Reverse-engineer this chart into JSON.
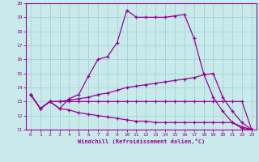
{
  "xlabel": "Windchill (Refroidissement éolien,°C)",
  "xlim": [
    -0.5,
    23.5
  ],
  "ylim": [
    11,
    20
  ],
  "yticks": [
    11,
    12,
    13,
    14,
    15,
    16,
    17,
    18,
    19,
    20
  ],
  "xticks": [
    0,
    1,
    2,
    3,
    4,
    5,
    6,
    7,
    8,
    9,
    10,
    11,
    12,
    13,
    14,
    15,
    16,
    17,
    18,
    19,
    20,
    21,
    22,
    23
  ],
  "bg_color": "#c8eaea",
  "line_color": "#990099",
  "grid_color": "#a0cccc",
  "series": {
    "line1": {
      "x": [
        0,
        1,
        2,
        3,
        4,
        5,
        6,
        7,
        8,
        9,
        10,
        11,
        12,
        13,
        14,
        15,
        16,
        17,
        18,
        19,
        20,
        21,
        22,
        23
      ],
      "y": [
        13.5,
        12.5,
        13.0,
        12.5,
        13.2,
        13.5,
        14.8,
        16.0,
        16.2,
        17.2,
        19.5,
        19.0,
        19.0,
        19.0,
        19.0,
        19.1,
        19.2,
        17.5,
        15.0,
        13.3,
        12.3,
        11.5,
        11.1,
        11.0
      ],
      "marker": "+"
    },
    "line2": {
      "x": [
        0,
        1,
        2,
        3,
        4,
        5,
        6,
        7,
        8,
        9,
        10,
        11,
        12,
        13,
        14,
        15,
        16,
        17,
        18,
        19,
        20,
        21,
        22,
        23
      ],
      "y": [
        13.5,
        12.5,
        13.0,
        13.0,
        13.1,
        13.2,
        13.3,
        13.5,
        13.6,
        13.8,
        14.0,
        14.1,
        14.2,
        14.3,
        14.4,
        14.5,
        14.6,
        14.7,
        14.9,
        15.0,
        13.3,
        12.3,
        11.5,
        11.0
      ],
      "marker": "+"
    },
    "line3": {
      "x": [
        0,
        1,
        2,
        3,
        4,
        5,
        6,
        7,
        8,
        9,
        10,
        11,
        12,
        13,
        14,
        15,
        16,
        17,
        18,
        19,
        20,
        21,
        22,
        23
      ],
      "y": [
        13.5,
        12.5,
        13.0,
        13.0,
        13.0,
        13.0,
        13.0,
        13.0,
        13.0,
        13.0,
        13.0,
        13.0,
        13.0,
        13.0,
        13.0,
        13.0,
        13.0,
        13.0,
        13.0,
        13.0,
        13.0,
        13.0,
        13.0,
        11.0
      ],
      "marker": "+"
    },
    "line4": {
      "x": [
        0,
        1,
        2,
        3,
        4,
        5,
        6,
        7,
        8,
        9,
        10,
        11,
        12,
        13,
        14,
        15,
        16,
        17,
        18,
        19,
        20,
        21,
        22,
        23
      ],
      "y": [
        13.5,
        12.5,
        13.0,
        12.5,
        12.4,
        12.2,
        12.1,
        12.0,
        11.9,
        11.8,
        11.7,
        11.6,
        11.6,
        11.5,
        11.5,
        11.5,
        11.5,
        11.5,
        11.5,
        11.5,
        11.5,
        11.5,
        11.2,
        11.0
      ],
      "marker": "+"
    }
  }
}
